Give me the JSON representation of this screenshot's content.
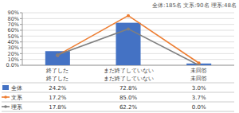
{
  "chart_data": {
    "type": "bar",
    "subtitle": "全体:185名 文系:90名 理系:48名",
    "categories": [
      "終了した",
      "まだ終了していない",
      "未回答"
    ],
    "series": [
      {
        "name": "全体",
        "type": "bar",
        "color": "#4472c4",
        "values": [
          24.2,
          72.8,
          3.0
        ],
        "value_labels": [
          "24.2%",
          "72.8%",
          "3.0%"
        ]
      },
      {
        "name": "文系",
        "type": "line",
        "color": "#ed7d31",
        "marker": "circle",
        "line_style": "solid",
        "values": [
          17.2,
          85.0,
          3.7
        ],
        "value_labels": [
          "17.2%",
          "85.0%",
          "3.7%"
        ]
      },
      {
        "name": "理系",
        "type": "line",
        "color": "#7f7f7f",
        "marker": "circle",
        "line_style": "solid",
        "values": [
          17.8,
          62.2,
          0.0
        ],
        "value_labels": [
          "17.8%",
          "62.2%",
          "0.0%"
        ]
      }
    ],
    "ylim": [
      0,
      90
    ],
    "yticks": [
      {
        "value": 0,
        "label": "0.0%"
      },
      {
        "value": 10,
        "label": "10%"
      },
      {
        "value": 20,
        "label": "20%"
      },
      {
        "value": 30,
        "label": "30%"
      },
      {
        "value": 40,
        "label": "40%"
      },
      {
        "value": 50,
        "label": "50%"
      },
      {
        "value": 60,
        "label": "60%"
      },
      {
        "value": 70,
        "label": "70%"
      },
      {
        "value": 80,
        "label": "80%"
      },
      {
        "value": 90,
        "label": "90%"
      }
    ],
    "grid": true
  }
}
